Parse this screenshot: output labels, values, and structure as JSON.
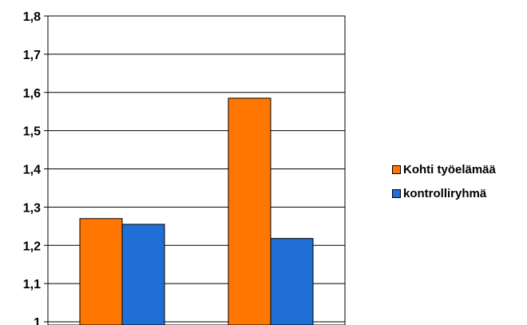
{
  "chart_data": {
    "type": "bar",
    "title": "",
    "xlabel": "",
    "ylabel": "",
    "categories": [
      "",
      ""
    ],
    "ylim": [
      1,
      1.8
    ],
    "yticks": [
      "1",
      "1,1",
      "1,2",
      "1,3",
      "1,4",
      "1,5",
      "1,6",
      "1,7",
      "1,8"
    ],
    "grid": true,
    "legend": "right",
    "series": [
      {
        "name": "Kohti työelämää",
        "color": "#ff7700",
        "values": [
          1.27,
          1.585
        ]
      },
      {
        "name": "kontrolliryhmä",
        "color": "#1f6fd6",
        "values": [
          1.255,
          1.218
        ]
      }
    ]
  }
}
